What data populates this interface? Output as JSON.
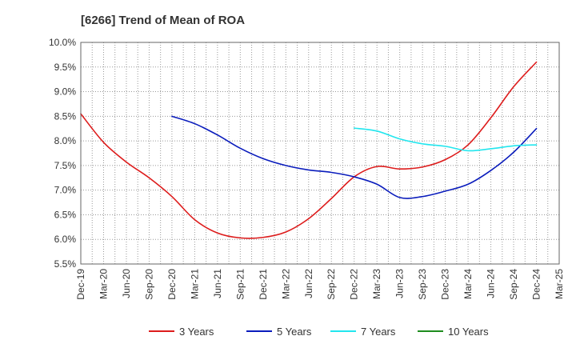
{
  "chart_data": {
    "type": "line",
    "title": "[6266]  Trend of Mean of ROA",
    "xlabel": "",
    "ylabel": "",
    "x_ticks": [
      "Dec-19",
      "Mar-20",
      "Jun-20",
      "Sep-20",
      "Dec-20",
      "Mar-21",
      "Jun-21",
      "Sep-21",
      "Dec-21",
      "Mar-22",
      "Jun-22",
      "Sep-22",
      "Dec-22",
      "Mar-23",
      "Jun-23",
      "Sep-23",
      "Dec-23",
      "Mar-24",
      "Jun-24",
      "Sep-24",
      "Dec-24",
      "Mar-25"
    ],
    "y_ticks": [
      "10.0%",
      "9.5%",
      "9.0%",
      "8.5%",
      "8.0%",
      "7.5%",
      "7.0%",
      "6.5%",
      "6.0%",
      "5.5%"
    ],
    "ylim": [
      5.5,
      10.0
    ],
    "grid": true,
    "legend_position": "bottom",
    "series": [
      {
        "name": "3 Years",
        "color": "#dd1c1c",
        "x": [
          "Dec-19",
          "Mar-20",
          "Jun-20",
          "Sep-20",
          "Dec-20",
          "Mar-21",
          "Jun-21",
          "Sep-21",
          "Dec-21",
          "Mar-22",
          "Jun-22",
          "Sep-22",
          "Dec-22",
          "Mar-23",
          "Jun-23",
          "Sep-23",
          "Dec-23",
          "Mar-24",
          "Jun-24",
          "Sep-24",
          "Dec-24"
        ],
        "values": [
          8.55,
          7.97,
          7.57,
          7.25,
          6.87,
          6.4,
          6.13,
          6.03,
          6.04,
          6.15,
          6.42,
          6.83,
          7.27,
          7.48,
          7.43,
          7.47,
          7.62,
          7.92,
          8.47,
          9.1,
          9.6
        ]
      },
      {
        "name": "5 Years",
        "color": "#0a1cbc",
        "x": [
          "Dec-20",
          "Mar-21",
          "Jun-21",
          "Sep-21",
          "Dec-21",
          "Mar-22",
          "Jun-22",
          "Sep-22",
          "Dec-22",
          "Mar-23",
          "Jun-23",
          "Sep-23",
          "Dec-23",
          "Mar-24",
          "Jun-24",
          "Sep-24",
          "Dec-24"
        ],
        "values": [
          8.5,
          8.35,
          8.12,
          7.85,
          7.64,
          7.5,
          7.41,
          7.36,
          7.27,
          7.12,
          6.85,
          6.87,
          6.98,
          7.12,
          7.4,
          7.77,
          8.25
        ]
      },
      {
        "name": "7 Years",
        "color": "#22e6ee",
        "x": [
          "Dec-22",
          "Mar-23",
          "Jun-23",
          "Sep-23",
          "Dec-23",
          "Mar-24",
          "Jun-24",
          "Sep-24",
          "Dec-24"
        ],
        "values": [
          8.26,
          8.2,
          8.04,
          7.94,
          7.89,
          7.8,
          7.84,
          7.9,
          7.92
        ]
      },
      {
        "name": "10 Years",
        "color": "#1e8c1e",
        "x": [],
        "values": []
      }
    ]
  }
}
